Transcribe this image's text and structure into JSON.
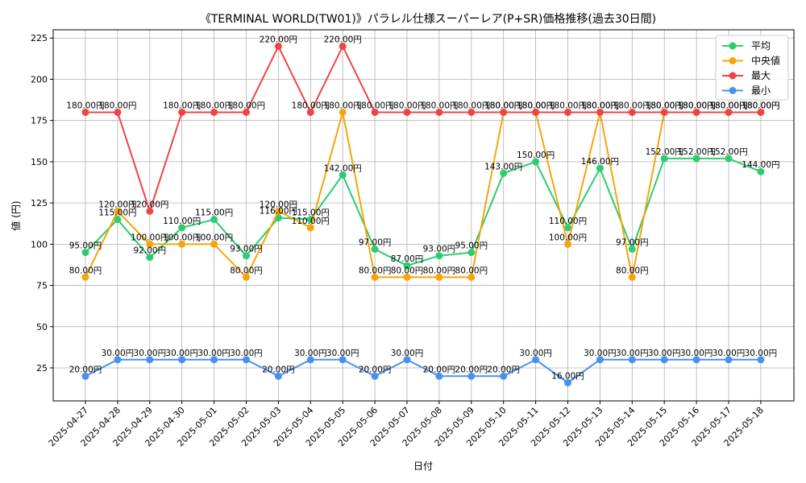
{
  "chart_data": {
    "type": "line",
    "title": "《TERMINAL WORLD(TW01)》パラレル仕様スーパーレア(P+SR)価格推移(過去30日間)",
    "xlabel": "日付",
    "ylabel": "値 (円)",
    "ylim": [
      5,
      230
    ],
    "yticks": [
      25,
      50,
      75,
      100,
      125,
      150,
      175,
      200,
      225
    ],
    "grid": true,
    "legend_position": "top-right",
    "value_suffix": "円",
    "categories": [
      "2025-04-27",
      "2025-04-28",
      "2025-04-29",
      "2025-04-30",
      "2025-05-01",
      "2025-05-02",
      "2025-05-03",
      "2025-05-04",
      "2025-05-05",
      "2025-05-06",
      "2025-05-07",
      "2025-05-08",
      "2025-05-09",
      "2025-05-10",
      "2025-05-11",
      "2025-05-12",
      "2025-05-13",
      "2025-05-14",
      "2025-05-15",
      "2025-05-16",
      "2025-05-17",
      "2025-05-18"
    ],
    "series": [
      {
        "name": "平均",
        "color": "#2ecc71",
        "values": [
          95,
          115,
          92,
          110,
          115,
          93,
          116,
          115,
          142,
          97,
          87,
          93,
          95,
          143,
          150,
          110,
          146,
          97,
          152,
          152,
          152,
          144
        ]
      },
      {
        "name": "中央値",
        "color": "#f5a50a",
        "values": [
          80,
          120,
          100,
          100,
          100,
          80,
          120,
          110,
          180,
          80,
          80,
          80,
          80,
          180,
          180,
          100,
          180,
          80,
          180,
          180,
          180,
          180
        ]
      },
      {
        "name": "最大",
        "color": "#ef4444",
        "values": [
          180,
          180,
          120,
          180,
          180,
          180,
          220,
          180,
          220,
          180,
          180,
          180,
          180,
          180,
          180,
          180,
          180,
          180,
          180,
          180,
          180,
          180
        ]
      },
      {
        "name": "最小",
        "color": "#4a90f0",
        "values": [
          20,
          30,
          30,
          30,
          30,
          30,
          20,
          30,
          30,
          20,
          30,
          20,
          20,
          20,
          30,
          16,
          30,
          30,
          30,
          30,
          30,
          30
        ]
      }
    ]
  }
}
